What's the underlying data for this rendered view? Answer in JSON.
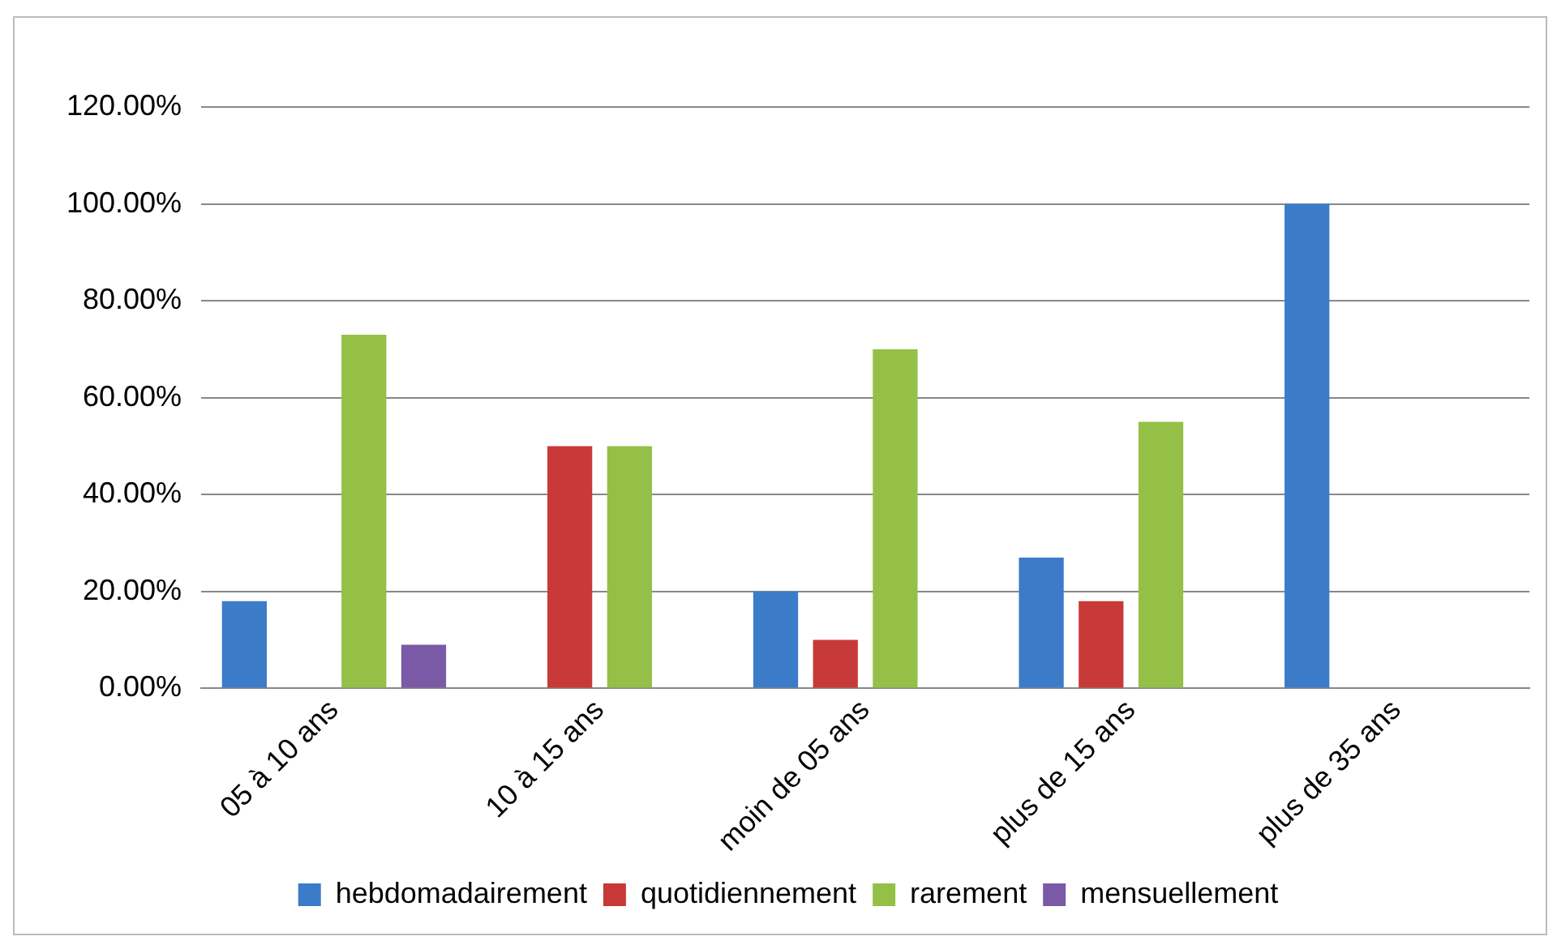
{
  "chart_data": {
    "type": "bar",
    "categories": [
      "05 à 10 ans",
      "10 à 15 ans",
      "moin de 05 ans",
      "plus de 15 ans",
      "plus de 35 ans"
    ],
    "series": [
      {
        "name": "hebdomadairement",
        "color": "#3c7bc8",
        "values": [
          18,
          0,
          20,
          27,
          100
        ]
      },
      {
        "name": "quotidiennement",
        "color": "#c83a38",
        "values": [
          0,
          50,
          10,
          18,
          0
        ]
      },
      {
        "name": "rarement",
        "color": "#94c047",
        "values": [
          73,
          50,
          70,
          55,
          0
        ]
      },
      {
        "name": "mensuellement",
        "color": "#7a5aa6",
        "values": [
          9,
          0,
          0,
          0,
          0
        ]
      }
    ],
    "ylim": [
      0,
      120
    ],
    "yticks": [
      {
        "value": 0,
        "label": "0.00%"
      },
      {
        "value": 20,
        "label": "20.00%"
      },
      {
        "value": 40,
        "label": "40.00%"
      },
      {
        "value": 60,
        "label": "60.00%"
      },
      {
        "value": 80,
        "label": "80.00%"
      },
      {
        "value": 100,
        "label": "100.00%"
      },
      {
        "value": 120,
        "label": "120.00%"
      }
    ],
    "grid": "y",
    "legend": "bottom"
  }
}
